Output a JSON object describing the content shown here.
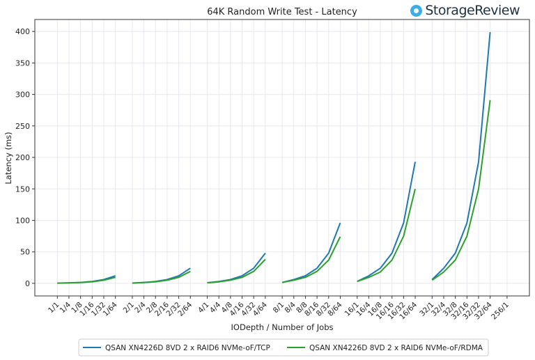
{
  "brand": "StorageReview",
  "chart_data": {
    "type": "line",
    "title": "64K Random Write Test - Latency",
    "xlabel": "IODepth / Number of Jobs",
    "ylabel": "Latency (ms)",
    "ylim": [
      -20,
      419
    ],
    "yticks": [
      0,
      50,
      100,
      150,
      200,
      250,
      300,
      350,
      400
    ],
    "grid": true,
    "legend_position": "bottom",
    "categories": [
      "1/1",
      "1/4",
      "1/8",
      "1/16",
      "1/32",
      "1/64",
      "2/1",
      "2/4",
      "2/8",
      "2/16",
      "2/32",
      "2/64",
      "4/1",
      "4/4",
      "4/8",
      "4/16",
      "4/32",
      "4/64",
      "8/1",
      "8/4",
      "8/8",
      "8/16",
      "8/32",
      "8/64",
      "16/1",
      "16/4",
      "16/8",
      "16/16",
      "16/32",
      "16/64",
      "32/1",
      "32/4",
      "32/8",
      "32/16",
      "32/32",
      "32/64",
      "256/1"
    ],
    "series": [
      {
        "name": "QSAN XN4226D 8VD 2 x RAID6 NVMe-oF/TCP",
        "color": "#1f77b4",
        "values": [
          0.3,
          0.8,
          1.5,
          3,
          6,
          12,
          0.5,
          1.5,
          3,
          6,
          12,
          24,
          1,
          3,
          6,
          12,
          24,
          48,
          1.5,
          6,
          12,
          24,
          48,
          96,
          3,
          12,
          24,
          48,
          96,
          193,
          6,
          24,
          48,
          96,
          193,
          399,
          null
        ]
      },
      {
        "name": "QSAN XN4226D 8VD 2 x RAID6 NVMe-oF/RDMA",
        "color": "#2ca02c",
        "values": [
          0.3,
          0.7,
          1.3,
          2.5,
          5,
          9.5,
          0.4,
          1.2,
          2.5,
          5,
          9.5,
          19,
          0.8,
          2.5,
          5,
          9.5,
          19,
          38,
          1.5,
          5,
          9.5,
          19,
          37,
          74,
          3,
          9.5,
          18,
          37,
          75,
          150,
          5,
          18,
          37,
          75,
          150,
          291,
          null
        ]
      }
    ]
  }
}
